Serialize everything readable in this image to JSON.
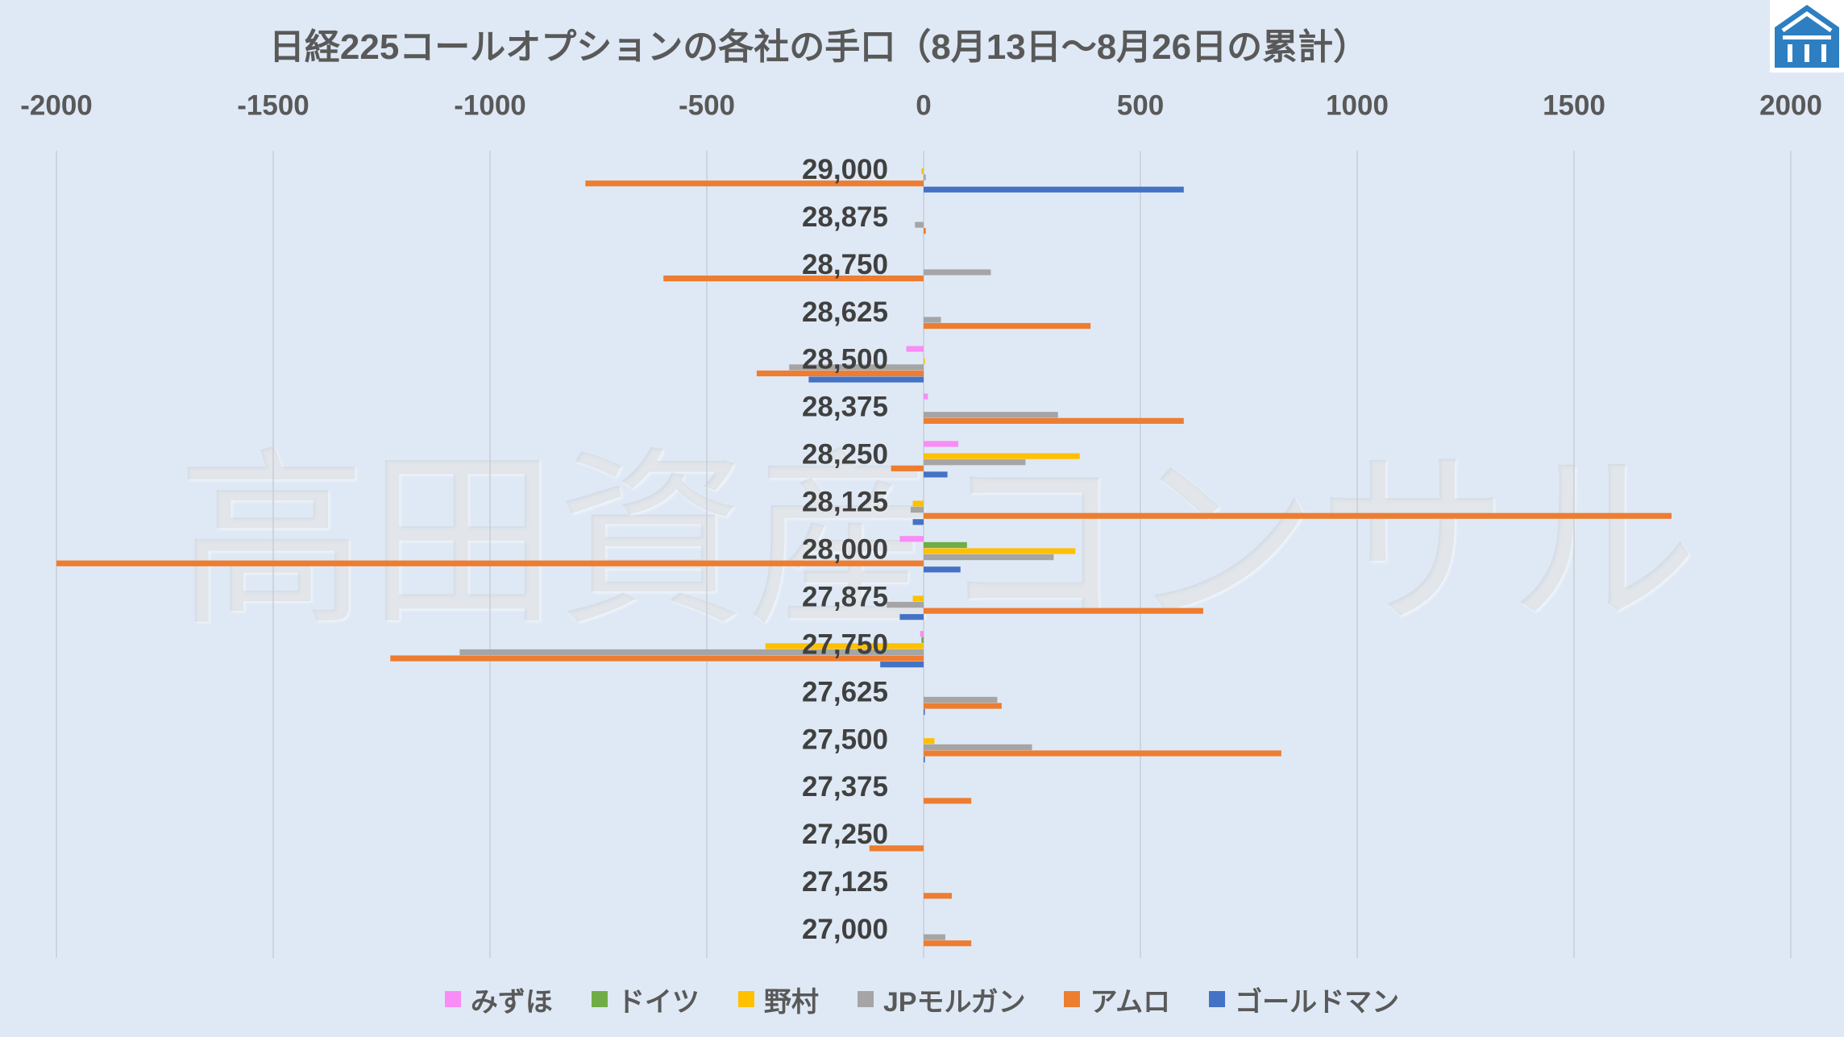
{
  "watermark": "高田資産コンサル",
  "colors": {
    "background": "#dfe9f5",
    "grid": "#c9ced6",
    "logo": "#2d7fc1"
  },
  "logo": {
    "icon": "house-logo-icon"
  },
  "chart_data": {
    "type": "bar",
    "orientation": "horizontal",
    "title": "日経225コールオプションの各社の手口（8月13日～8月26日の累計）",
    "xlim": [
      -2000,
      2000
    ],
    "xticks": [
      -2000,
      -1500,
      -1000,
      -500,
      0,
      500,
      1000,
      1500,
      2000
    ],
    "xaxis_position": "top",
    "grid": true,
    "legend": "bottom",
    "categories": [
      "29,000",
      "28,875",
      "28,750",
      "28,625",
      "28,500",
      "28,375",
      "28,250",
      "28,125",
      "28,000",
      "27,875",
      "27,750",
      "27,625",
      "27,500",
      "27,375",
      "27,250",
      "27,125",
      "27,000"
    ],
    "series": [
      {
        "name": "みずほ",
        "color": "#f98cf5",
        "values": [
          0,
          0,
          0,
          0,
          -40,
          10,
          80,
          0,
          -55,
          0,
          -8,
          0,
          0,
          0,
          0,
          0,
          0
        ]
      },
      {
        "name": "ドイツ",
        "color": "#70ad47",
        "values": [
          0,
          0,
          0,
          0,
          0,
          0,
          0,
          0,
          100,
          0,
          -5,
          0,
          0,
          0,
          0,
          0,
          0
        ]
      },
      {
        "name": "野村",
        "color": "#ffc000",
        "values": [
          -5,
          0,
          0,
          0,
          3,
          0,
          360,
          -25,
          350,
          -25,
          -365,
          0,
          25,
          0,
          0,
          0,
          0
        ]
      },
      {
        "name": "JPモルガン",
        "color": "#a5a5a5",
        "values": [
          5,
          -20,
          155,
          40,
          -310,
          310,
          235,
          -30,
          300,
          -85,
          -1070,
          170,
          250,
          0,
          0,
          0,
          50
        ]
      },
      {
        "name": "アムロ",
        "color": "#ed7d31",
        "values": [
          -780,
          5,
          -600,
          385,
          -385,
          600,
          -75,
          1725,
          -2000,
          645,
          -1230,
          180,
          825,
          110,
          -125,
          65,
          110
        ]
      },
      {
        "name": "ゴールドマン",
        "color": "#4472c4",
        "values": [
          600,
          0,
          0,
          0,
          -265,
          0,
          55,
          -25,
          85,
          -55,
          -100,
          3,
          3,
          0,
          0,
          0,
          0
        ]
      }
    ]
  }
}
